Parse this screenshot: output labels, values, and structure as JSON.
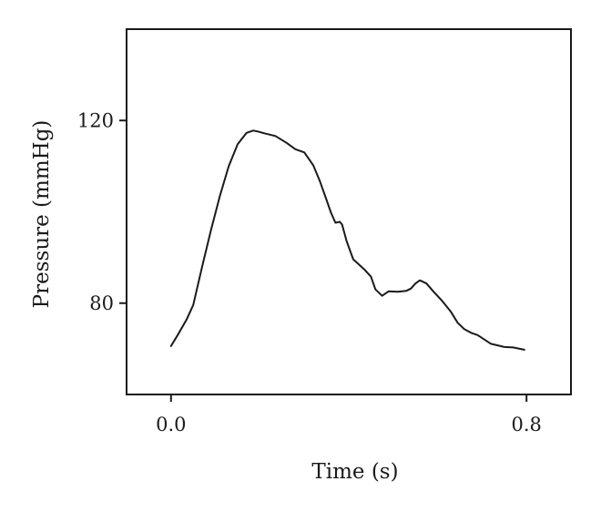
{
  "chart_data": {
    "type": "line",
    "xlabel": "Time (s)",
    "ylabel": "Pressure (mmHg)",
    "xlim": [
      -0.1,
      0.9
    ],
    "ylim": [
      60,
      140
    ],
    "xticks": [
      0.0,
      0.8
    ],
    "xtick_labels": [
      "0.0",
      "0.8"
    ],
    "yticks": [
      80,
      120
    ],
    "ytick_labels": [
      "80",
      "120"
    ],
    "grid": false,
    "line_color": "#1a1a1a",
    "series": [
      {
        "x": [
          0.0,
          0.015,
          0.035,
          0.05,
          0.07,
          0.09,
          0.11,
          0.13,
          0.15,
          0.17,
          0.185,
          0.195,
          0.21,
          0.235,
          0.26,
          0.28,
          0.3,
          0.32,
          0.335,
          0.35,
          0.36,
          0.37,
          0.38,
          0.385,
          0.395,
          0.41,
          0.435,
          0.45,
          0.46,
          0.475,
          0.49,
          0.51,
          0.53,
          0.54,
          0.55,
          0.56,
          0.575,
          0.59,
          0.61,
          0.63,
          0.645,
          0.66,
          0.675,
          0.69,
          0.72,
          0.75,
          0.77,
          0.795
        ],
        "y": [
          70.6,
          73.0,
          76.4,
          79.6,
          88.0,
          96.0,
          103.5,
          110.0,
          114.8,
          117.3,
          117.8,
          117.6,
          117.2,
          116.6,
          115.1,
          113.7,
          113.0,
          110.2,
          106.7,
          102.6,
          99.8,
          97.6,
          97.8,
          97.2,
          93.6,
          89.6,
          87.4,
          85.8,
          83.0,
          81.6,
          82.6,
          82.5,
          82.7,
          83.2,
          84.3,
          85.0,
          84.3,
          82.6,
          80.5,
          78.1,
          75.7,
          74.3,
          73.5,
          73.0,
          71.1,
          70.4,
          70.3,
          69.8
        ]
      }
    ]
  }
}
